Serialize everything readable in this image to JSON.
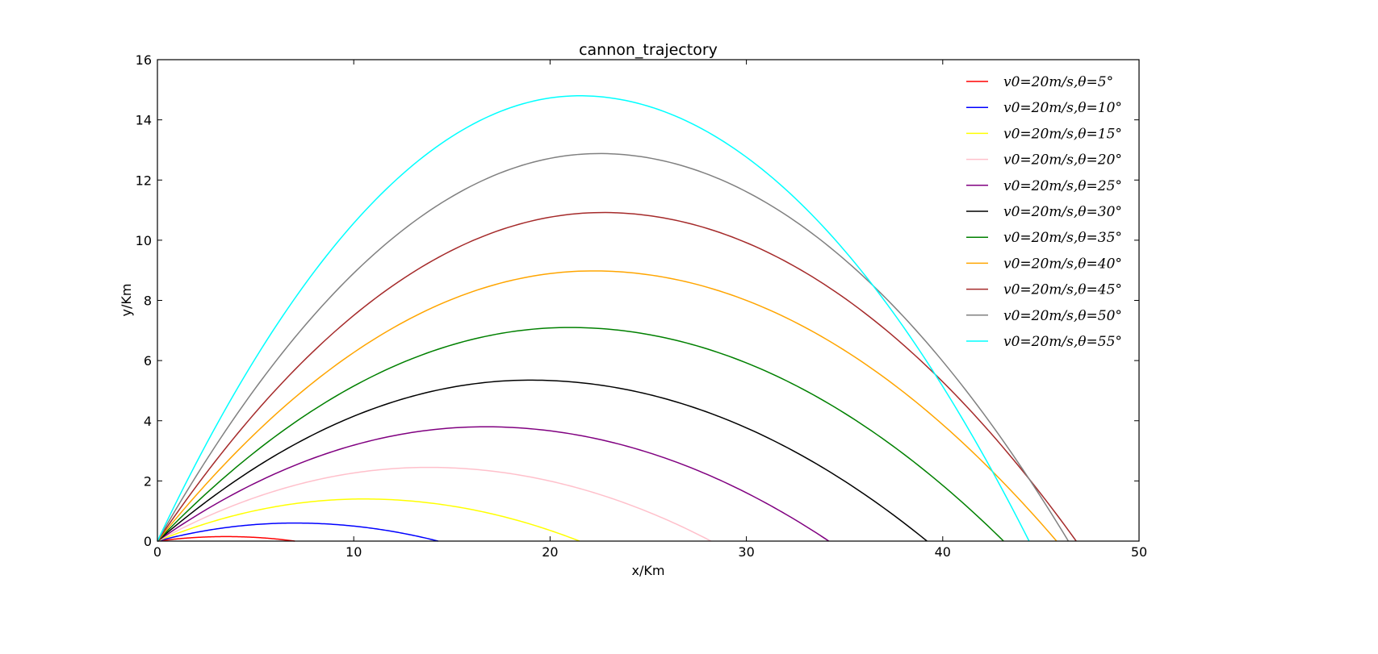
{
  "chart_data": {
    "type": "line",
    "title": "cannon_trajectory",
    "xlabel": "x/Km",
    "ylabel": "y/Km",
    "xlim": [
      0,
      50
    ],
    "ylim": [
      0,
      16
    ],
    "xticks": [
      0,
      10,
      20,
      30,
      40,
      50
    ],
    "yticks": [
      0,
      2,
      4,
      6,
      8,
      10,
      12,
      14,
      16
    ],
    "xtick_labels": [
      "0",
      "10",
      "20",
      "30",
      "40",
      "50"
    ],
    "ytick_labels": [
      "0",
      "2",
      "4",
      "6",
      "8",
      "10",
      "12",
      "14",
      "16"
    ],
    "grid": false,
    "legend": "top-right",
    "series": [
      {
        "name": "v0=20m/s,θ=5°",
        "color": "#ff0000",
        "x_peak": 3.5,
        "y_peak": 0.15,
        "x_range": 7.0
      },
      {
        "name": "v0=20m/s,θ=10°",
        "color": "#0000ff",
        "x_peak": 7.0,
        "y_peak": 0.6,
        "x_range": 14.3
      },
      {
        "name": "v0=20m/s,θ=15°",
        "color": "#ffff00",
        "x_peak": 10.5,
        "y_peak": 1.4,
        "x_range": 21.5
      },
      {
        "name": "v0=20m/s,θ=20°",
        "color": "#ffc0cb",
        "x_peak": 13.8,
        "y_peak": 2.45,
        "x_range": 28.2
      },
      {
        "name": "v0=20m/s,θ=25°",
        "color": "#800080",
        "x_peak": 16.7,
        "y_peak": 3.8,
        "x_range": 34.2
      },
      {
        "name": "v0=20m/s,θ=30°",
        "color": "#000000",
        "x_peak": 19.0,
        "y_peak": 5.35,
        "x_range": 39.2
      },
      {
        "name": "v0=20m/s,θ=35°",
        "color": "#008000",
        "x_peak": 21.0,
        "y_peak": 7.1,
        "x_range": 43.1
      },
      {
        "name": "v0=20m/s,θ=40°",
        "color": "#ffa500",
        "x_peak": 22.2,
        "y_peak": 8.98,
        "x_range": 45.8
      },
      {
        "name": "v0=20m/s,θ=45°",
        "color": "#a52a2a",
        "x_peak": 22.7,
        "y_peak": 10.92,
        "x_range": 46.8
      },
      {
        "name": "v0=20m/s,θ=50°",
        "color": "#808080",
        "x_peak": 22.5,
        "y_peak": 12.88,
        "x_range": 46.4
      },
      {
        "name": "v0=20m/s,θ=55°",
        "color": "#00ffff",
        "x_peak": 21.5,
        "y_peak": 14.8,
        "x_range": 44.4
      }
    ]
  }
}
